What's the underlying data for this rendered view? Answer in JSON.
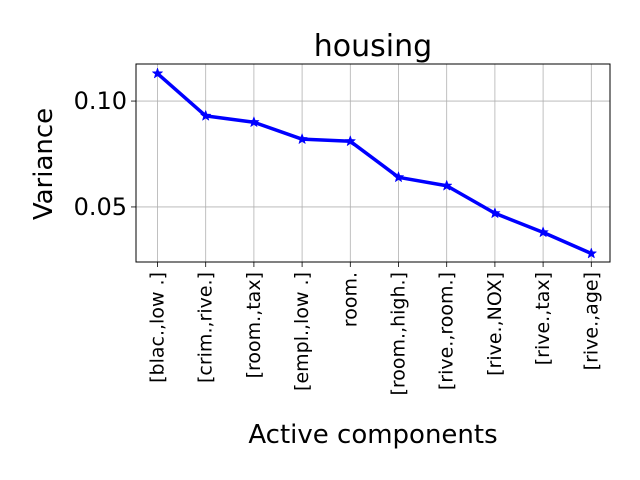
{
  "chart_data": {
    "type": "line",
    "title": "housing",
    "xlabel": "Active components",
    "ylabel": "Variance",
    "categories": [
      "[blac.,low .]",
      "[crim.,rive.]",
      "[room.,tax]",
      "[empl.,low .]",
      "room.",
      "[room.,high.]",
      "[rive.,room.]",
      "[rive.,NOX]",
      "[rive.,tax]",
      "[rive.,age]"
    ],
    "series": [
      {
        "values": [
          0.113,
          0.093,
          0.09,
          0.082,
          0.081,
          0.064,
          0.06,
          0.047,
          0.038,
          0.028
        ],
        "color": "#0000ff",
        "marker": "star"
      }
    ],
    "yticks": [
      0.05,
      0.1
    ],
    "ytick_labels": [
      "0.05",
      "0.10"
    ],
    "ylim": [
      0.024,
      0.1175
    ],
    "grid": true,
    "legend": "none"
  }
}
